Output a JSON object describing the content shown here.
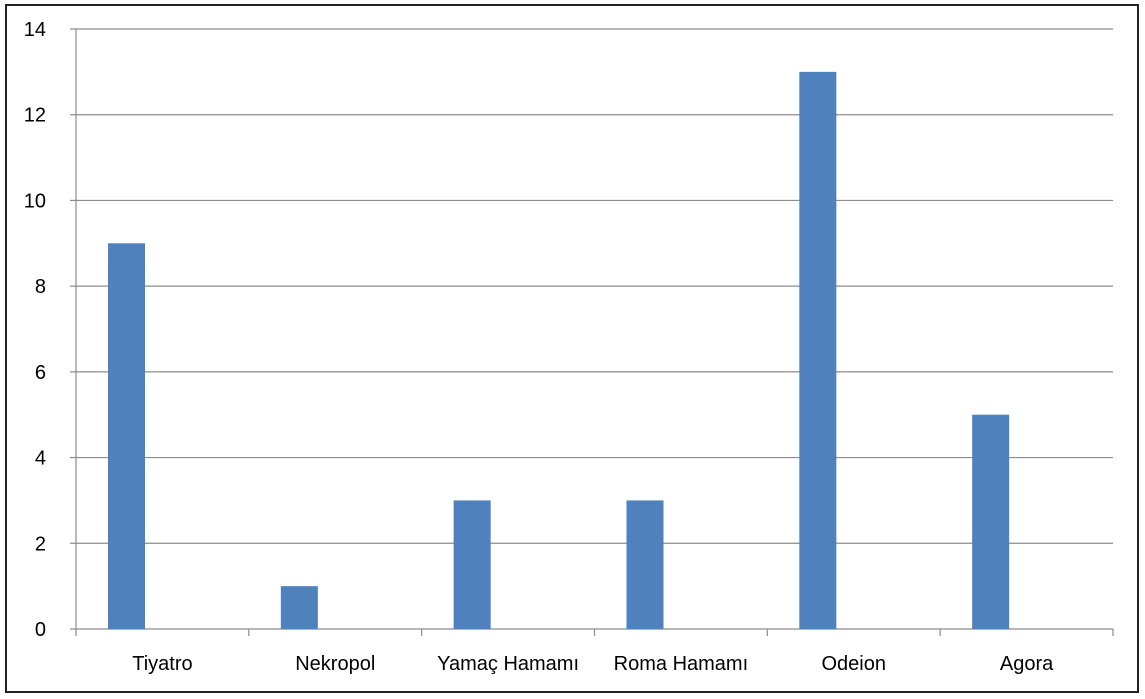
{
  "chart_data": {
    "type": "bar",
    "categories": [
      "Tiyatro",
      "Nekropol",
      "Yamaç Hamamı",
      "Roma Hamamı",
      "Odeion",
      "Agora"
    ],
    "values": [
      9,
      1,
      3,
      3,
      13,
      5
    ],
    "title": "",
    "xlabel": "",
    "ylabel": "",
    "ylim": [
      0,
      14
    ],
    "yticks": [
      0,
      2,
      4,
      6,
      8,
      10,
      12,
      14
    ],
    "grid": true,
    "legend": "none",
    "bar_color": "#4F81BD",
    "grid_color": "#8C8C8C",
    "axis_color": "#8C8C8C"
  }
}
